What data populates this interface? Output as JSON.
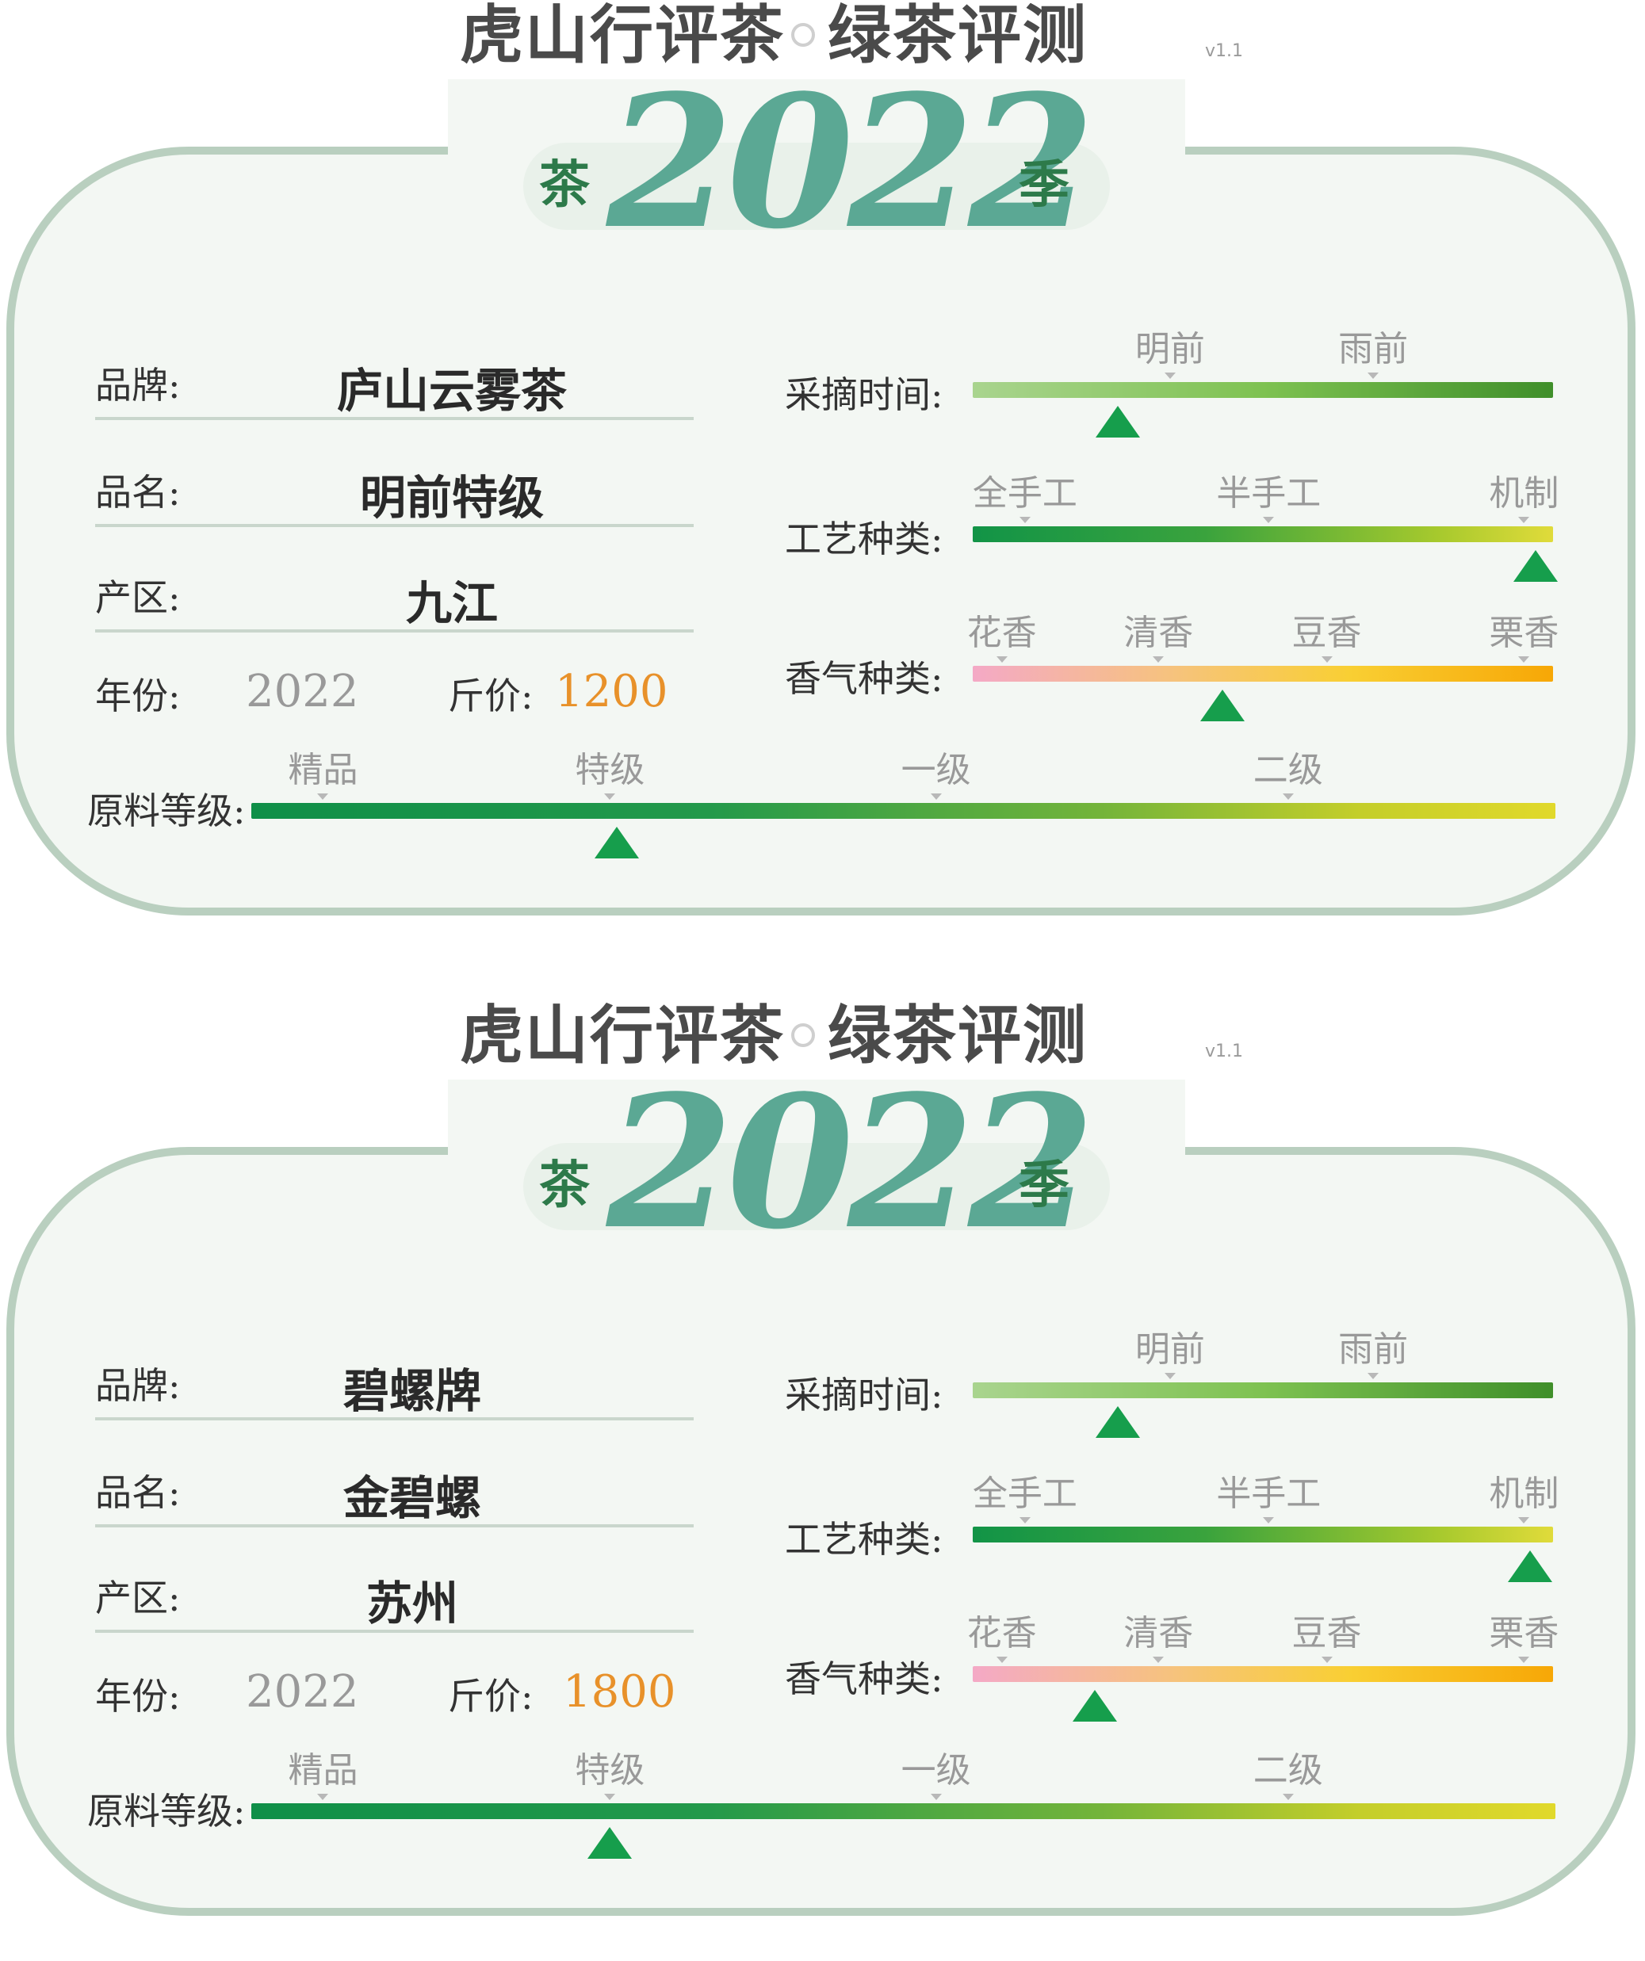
{
  "cards": [
    {
      "header": {
        "title_left": "虎山行评茶",
        "title_right": "绿茶评测",
        "version": "v1.1"
      },
      "badge": {
        "prefix": "茶",
        "year": "2022",
        "suffix": "季"
      },
      "info": {
        "brand_label": "品牌:",
        "brand": "庐山云雾茶",
        "name_label": "品名:",
        "name": "明前特级",
        "origin_label": "产区:",
        "origin": "九江",
        "year_label": "年份:",
        "year": "2022",
        "price_label": "斤价:",
        "price": "1200"
      },
      "picking": {
        "label": "采摘时间:",
        "ticks": [
          "明前",
          "雨前"
        ],
        "marker": 0.25
      },
      "craft": {
        "label": "工艺种类:",
        "ticks": [
          "全手工",
          "半手工",
          "机制"
        ],
        "marker": 0.97
      },
      "aroma": {
        "label": "香气种类:",
        "ticks": [
          "花香",
          "清香",
          "豆香",
          "栗香"
        ],
        "marker": 0.43
      },
      "grade": {
        "label": "原料等级:",
        "ticks": [
          "精品",
          "特级",
          "一级",
          "二级"
        ],
        "marker": 0.28
      }
    },
    {
      "header": {
        "title_left": "虎山行评茶",
        "title_right": "绿茶评测",
        "version": "v1.1"
      },
      "badge": {
        "prefix": "茶",
        "year": "2022",
        "suffix": "季"
      },
      "info": {
        "brand_label": "品牌:",
        "brand": "碧螺牌",
        "name_label": "品名:",
        "name": "金碧螺",
        "origin_label": "产区:",
        "origin": "苏州",
        "year_label": "年份:",
        "year": "2022",
        "price_label": "斤价:",
        "price": "1800"
      },
      "picking": {
        "label": "采摘时间:",
        "ticks": [
          "明前",
          "雨前"
        ],
        "marker": 0.25
      },
      "craft": {
        "label": "工艺种类:",
        "ticks": [
          "全手工",
          "半手工",
          "机制"
        ],
        "marker": 0.96
      },
      "aroma": {
        "label": "香气种类:",
        "ticks": [
          "花香",
          "清香",
          "豆香",
          "栗香"
        ],
        "marker": 0.21
      },
      "grade": {
        "label": "原料等级:",
        "ticks": [
          "精品",
          "特级",
          "一级",
          "二级"
        ],
        "marker": 0.275
      }
    }
  ],
  "colors": {
    "accent": "#5ba894",
    "price": "#e8912a",
    "marker": "#169e4c",
    "frame": "#b9cfbf"
  }
}
